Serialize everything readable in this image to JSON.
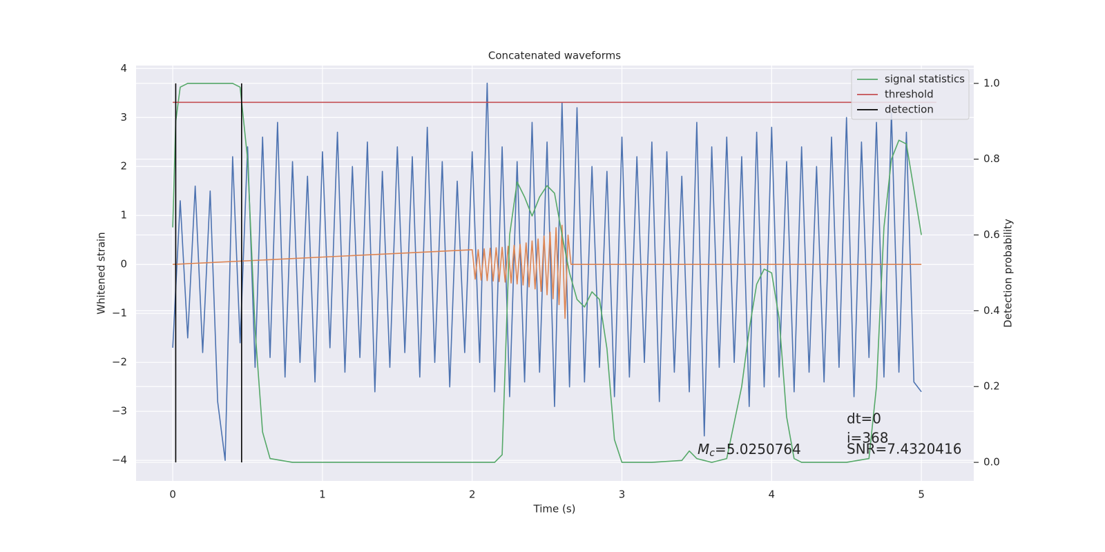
{
  "chart_data": {
    "type": "line",
    "title": "Concatenated waveforms",
    "xlabel": "Time (s)",
    "ylabel": "Whitened strain",
    "y2label": "Detection probability",
    "xlim": [
      -0.245,
      5.35
    ],
    "ylim": [
      -4.42,
      4.06
    ],
    "y2lim": [
      -0.049,
      1.047
    ],
    "xticks": [
      0,
      1,
      2,
      3,
      4,
      5
    ],
    "yticks": [
      {
        "value": -4,
        "label": "−4"
      },
      {
        "value": -3,
        "label": "−3"
      },
      {
        "value": -2,
        "label": "−2"
      },
      {
        "value": -1,
        "label": "−1"
      },
      0,
      1,
      2,
      3,
      4
    ],
    "y2ticks": [
      {
        "value": 0,
        "label": "0.0"
      },
      0.2,
      0.4,
      0.6,
      0.8,
      {
        "value": 1,
        "label": "1.0"
      }
    ],
    "grid": true,
    "legend": "upper right",
    "series": [
      {
        "color": "#4c72b0",
        "axis": "y",
        "x": [
          0,
          0.05,
          0.1,
          0.15,
          0.2,
          0.25,
          0.3,
          0.35,
          0.4,
          0.45,
          0.5,
          0.55,
          0.6,
          0.65,
          0.7,
          0.75,
          0.8,
          0.85,
          0.9,
          0.95,
          1.0,
          1.05,
          1.1,
          1.15,
          1.2,
          1.25,
          1.3,
          1.35,
          1.4,
          1.45,
          1.5,
          1.55,
          1.6,
          1.65,
          1.7,
          1.75,
          1.8,
          1.85,
          1.9,
          1.95,
          2.0,
          2.05,
          2.1,
          2.15,
          2.2,
          2.25,
          2.3,
          2.35,
          2.4,
          2.45,
          2.5,
          2.55,
          2.6,
          2.65,
          2.7,
          2.75,
          2.8,
          2.85,
          2.9,
          2.95,
          3.0,
          3.05,
          3.1,
          3.15,
          3.2,
          3.25,
          3.3,
          3.35,
          3.4,
          3.45,
          3.5,
          3.55,
          3.6,
          3.65,
          3.7,
          3.75,
          3.8,
          3.85,
          3.9,
          3.95,
          4.0,
          4.05,
          4.1,
          4.15,
          4.2,
          4.25,
          4.3,
          4.35,
          4.4,
          4.45,
          4.5,
          4.55,
          4.6,
          4.65,
          4.7,
          4.75,
          4.8,
          4.85,
          4.9,
          4.95,
          5.0
        ],
        "values": [
          -1.7,
          1.3,
          -1.5,
          1.6,
          -1.8,
          1.5,
          -2.8,
          -4.0,
          2.2,
          -1.6,
          2.4,
          -2.1,
          2.6,
          -1.9,
          2.9,
          -2.3,
          2.1,
          -2.0,
          1.8,
          -2.4,
          2.3,
          -1.7,
          2.7,
          -2.2,
          2.0,
          -1.9,
          2.5,
          -2.6,
          1.9,
          -2.1,
          2.4,
          -1.8,
          2.2,
          -2.3,
          2.8,
          -2.0,
          2.1,
          -2.5,
          1.7,
          -1.8,
          2.3,
          -2.0,
          3.7,
          -2.6,
          2.4,
          -2.7,
          2.1,
          -2.4,
          2.9,
          -2.2,
          2.5,
          -2.9,
          3.3,
          -2.5,
          3.2,
          -2.4,
          2.0,
          -2.1,
          1.9,
          -2.7,
          2.6,
          -2.3,
          2.2,
          -2.0,
          2.5,
          -2.8,
          2.3,
          -2.2,
          1.8,
          -2.6,
          2.9,
          -3.5,
          2.4,
          -2.1,
          2.6,
          -2.0,
          2.2,
          -2.9,
          2.7,
          -2.5,
          2.8,
          -2.3,
          2.1,
          -2.6,
          2.4,
          -2.2,
          2.0,
          -2.4,
          2.6,
          -2.1,
          3.0,
          -2.7,
          2.5,
          -1.9,
          2.9,
          -2.3,
          3.1,
          -2.2,
          2.7,
          -2.4,
          -2.6
        ]
      },
      {
        "color": "#dd8452",
        "axis": "y",
        "x": [
          0,
          2.0,
          2.02,
          2.04,
          2.06,
          2.08,
          2.1,
          2.12,
          2.14,
          2.16,
          2.18,
          2.2,
          2.22,
          2.24,
          2.26,
          2.28,
          2.3,
          2.32,
          2.34,
          2.36,
          2.38,
          2.4,
          2.42,
          2.44,
          2.46,
          2.48,
          2.5,
          2.52,
          2.54,
          2.56,
          2.58,
          2.6,
          2.62,
          2.64,
          2.66,
          5.0
        ],
        "values": [
          0,
          0.3,
          -0.3,
          0.3,
          -0.32,
          0.32,
          -0.33,
          0.33,
          -0.34,
          0.34,
          -0.35,
          0.35,
          -0.36,
          0.37,
          -0.38,
          0.39,
          -0.4,
          0.41,
          -0.42,
          0.44,
          -0.46,
          0.48,
          -0.5,
          0.52,
          -0.55,
          0.58,
          -0.62,
          0.66,
          -0.7,
          0.75,
          -0.82,
          0.8,
          -1.1,
          0.6,
          0,
          0
        ]
      },
      {
        "name": "signal statistics",
        "color": "#55a868",
        "axis": "y2",
        "x": [
          0,
          0.02,
          0.05,
          0.1,
          0.2,
          0.3,
          0.4,
          0.45,
          0.5,
          0.55,
          0.6,
          0.65,
          0.8,
          1.0,
          1.5,
          2.0,
          2.15,
          2.2,
          2.25,
          2.3,
          2.35,
          2.4,
          2.45,
          2.5,
          2.55,
          2.6,
          2.65,
          2.7,
          2.75,
          2.8,
          2.85,
          2.9,
          2.95,
          3.0,
          3.2,
          3.4,
          3.45,
          3.5,
          3.6,
          3.7,
          3.8,
          3.85,
          3.9,
          3.95,
          4.0,
          4.05,
          4.1,
          4.15,
          4.2,
          4.5,
          4.65,
          4.7,
          4.75,
          4.8,
          4.85,
          4.9,
          4.95,
          5.0
        ],
        "values": [
          0.62,
          0.9,
          0.99,
          1.0,
          1.0,
          1.0,
          1.0,
          0.99,
          0.8,
          0.35,
          0.08,
          0.01,
          0.0,
          0.0,
          0.0,
          0.0,
          0.0,
          0.02,
          0.6,
          0.74,
          0.7,
          0.65,
          0.7,
          0.73,
          0.71,
          0.6,
          0.5,
          0.43,
          0.41,
          0.45,
          0.43,
          0.3,
          0.06,
          0.0,
          0.0,
          0.005,
          0.03,
          0.01,
          0.0,
          0.01,
          0.2,
          0.35,
          0.47,
          0.51,
          0.5,
          0.38,
          0.12,
          0.01,
          0.0,
          0.0,
          0.01,
          0.2,
          0.62,
          0.8,
          0.85,
          0.84,
          0.72,
          0.6
        ]
      },
      {
        "name": "threshold",
        "color": "#c44e52",
        "axis": "y2",
        "x": [
          0,
          5.1
        ],
        "values": [
          0.95,
          0.95
        ]
      },
      {
        "name": "detection",
        "color": "#000000",
        "axis": "y2",
        "x": [
          0.02,
          0.02,
          null,
          0.46,
          0.46
        ],
        "values": [
          0,
          1,
          null,
          0,
          1
        ]
      }
    ],
    "annotations": {
      "dt": "dt=0",
      "i": "i=368",
      "snr": "SNR=7.4320416",
      "mc_symbol": "M",
      "mc_subscript": "c",
      "mc_value": "=5.0250764"
    }
  }
}
